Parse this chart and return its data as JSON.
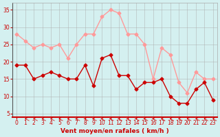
{
  "x": [
    0,
    1,
    2,
    3,
    4,
    5,
    6,
    7,
    8,
    9,
    10,
    11,
    12,
    13,
    14,
    15,
    16,
    17,
    18,
    19,
    20,
    21,
    22,
    23
  ],
  "avg_wind": [
    19,
    19,
    15,
    16,
    17,
    16,
    15,
    15,
    19,
    13,
    21,
    22,
    16,
    16,
    12,
    14,
    14,
    15,
    10,
    8,
    8,
    12,
    14,
    9
  ],
  "gust_wind": [
    28,
    26,
    24,
    25,
    24,
    25,
    21,
    25,
    28,
    28,
    33,
    35,
    34,
    28,
    28,
    25,
    15,
    24,
    22,
    14,
    11,
    17,
    15,
    15
  ],
  "avg_color": "#cc0000",
  "gust_color": "#ff9999",
  "bg_color": "#d4f0f0",
  "grid_color": "#aaaaaa",
  "xlabel": "Vent moyen/en rafales ( km/h )",
  "xlabel_color": "#cc0000",
  "tick_color": "#cc0000",
  "ylim": [
    4,
    37
  ],
  "yticks": [
    5,
    10,
    15,
    20,
    25,
    30,
    35
  ],
  "xlim": [
    -0.5,
    23.5
  ],
  "marker": "D",
  "markersize": 2.5,
  "linewidth": 1.0
}
